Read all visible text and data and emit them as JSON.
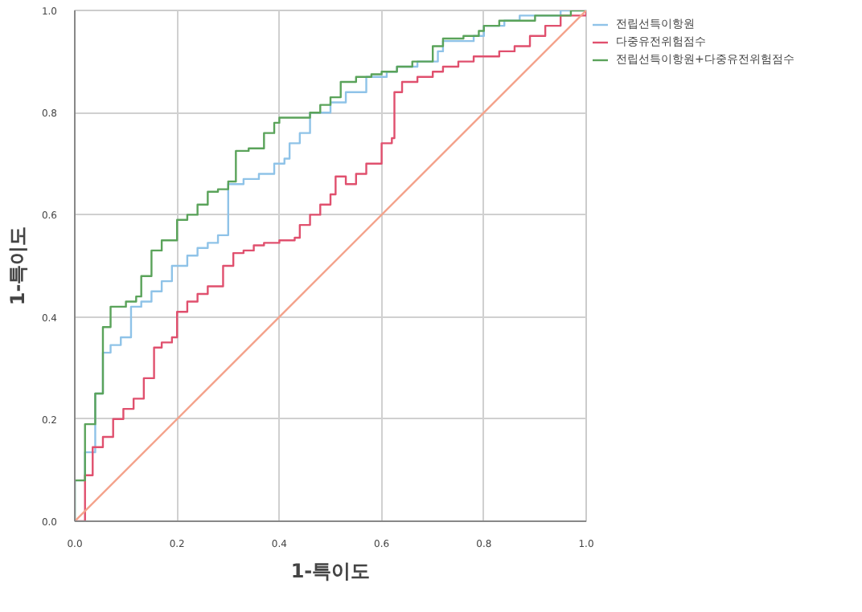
{
  "chart_data": {
    "type": "step",
    "xlabel": "1-특이도",
    "ylabel": "1-특이도",
    "xlim": [
      0,
      1
    ],
    "ylim": [
      0,
      1
    ],
    "xticks": [
      {
        "value": 0,
        "label": "0.0"
      },
      {
        "value": 0.2,
        "label": "0.2"
      },
      {
        "value": 0.4,
        "label": "0.4"
      },
      {
        "value": 0.6,
        "label": "0.6"
      },
      {
        "value": 0.8,
        "label": "0.8"
      },
      {
        "value": 1,
        "label": "1.0"
      }
    ],
    "yticks": [
      {
        "value": 0,
        "label": "0.0"
      },
      {
        "value": 0.2,
        "label": "0.2"
      },
      {
        "value": 0.4,
        "label": "0.4"
      },
      {
        "value": 0.6,
        "label": "0.6"
      },
      {
        "value": 0.8,
        "label": "0.8"
      },
      {
        "value": 1,
        "label": "1.0"
      }
    ],
    "grid": true,
    "legend": "top right",
    "series": [
      {
        "name": "전립선특이항원",
        "color": "#8fc3e8",
        "x": [
          0,
          0,
          0.02,
          0.04,
          0.055,
          0.07,
          0.09,
          0.11,
          0.13,
          0.15,
          0.17,
          0.19,
          0.22,
          0.24,
          0.26,
          0.28,
          0.3,
          0.33,
          0.36,
          0.39,
          0.41,
          0.42,
          0.44,
          0.46,
          0.5,
          0.53,
          0.57,
          0.61,
          0.63,
          0.67,
          0.71,
          0.72,
          0.78,
          0.8,
          0.84,
          0.87,
          0.95,
          1
        ],
        "values": [
          0,
          0.08,
          0.135,
          0.25,
          0.33,
          0.345,
          0.36,
          0.42,
          0.43,
          0.45,
          0.47,
          0.5,
          0.52,
          0.535,
          0.545,
          0.56,
          0.66,
          0.67,
          0.68,
          0.7,
          0.71,
          0.74,
          0.76,
          0.8,
          0.82,
          0.84,
          0.87,
          0.88,
          0.89,
          0.9,
          0.92,
          0.94,
          0.95,
          0.97,
          0.98,
          0.99,
          1,
          1
        ]
      },
      {
        "name": "다중유전위험점수",
        "color": "#e0506e",
        "x": [
          0,
          0.02,
          0.035,
          0.055,
          0.075,
          0.095,
          0.115,
          0.135,
          0.155,
          0.17,
          0.19,
          0.2,
          0.22,
          0.24,
          0.26,
          0.29,
          0.31,
          0.33,
          0.35,
          0.37,
          0.4,
          0.43,
          0.44,
          0.46,
          0.48,
          0.5,
          0.51,
          0.53,
          0.55,
          0.57,
          0.6,
          0.62,
          0.625,
          0.64,
          0.67,
          0.7,
          0.72,
          0.75,
          0.78,
          0.83,
          0.86,
          0.89,
          0.92,
          0.95,
          1
        ],
        "values": [
          0,
          0.09,
          0.145,
          0.165,
          0.2,
          0.22,
          0.24,
          0.28,
          0.34,
          0.35,
          0.36,
          0.41,
          0.43,
          0.445,
          0.46,
          0.5,
          0.525,
          0.53,
          0.54,
          0.545,
          0.55,
          0.555,
          0.58,
          0.6,
          0.62,
          0.64,
          0.675,
          0.66,
          0.68,
          0.7,
          0.74,
          0.75,
          0.84,
          0.86,
          0.87,
          0.88,
          0.89,
          0.9,
          0.91,
          0.92,
          0.93,
          0.95,
          0.97,
          0.99,
          1
        ]
      },
      {
        "name": "전립선특이항원+다중유전위험점수",
        "color": "#5aa35a",
        "x": [
          0,
          0,
          0.02,
          0.04,
          0.055,
          0.07,
          0.1,
          0.12,
          0.13,
          0.15,
          0.17,
          0.2,
          0.22,
          0.24,
          0.26,
          0.28,
          0.3,
          0.315,
          0.34,
          0.37,
          0.39,
          0.4,
          0.46,
          0.48,
          0.5,
          0.52,
          0.55,
          0.58,
          0.6,
          0.63,
          0.66,
          0.7,
          0.72,
          0.76,
          0.79,
          0.8,
          0.83,
          0.9,
          0.97,
          1
        ],
        "values": [
          0,
          0.08,
          0.19,
          0.25,
          0.38,
          0.42,
          0.43,
          0.44,
          0.48,
          0.53,
          0.55,
          0.59,
          0.6,
          0.62,
          0.645,
          0.65,
          0.665,
          0.725,
          0.73,
          0.76,
          0.78,
          0.79,
          0.8,
          0.815,
          0.83,
          0.86,
          0.87,
          0.875,
          0.88,
          0.89,
          0.9,
          0.93,
          0.945,
          0.95,
          0.96,
          0.97,
          0.98,
          0.99,
          1,
          1
        ]
      },
      {
        "type": "line",
        "color": "#f4a38c",
        "x": [
          0,
          1
        ],
        "values": [
          0,
          1
        ]
      }
    ]
  }
}
